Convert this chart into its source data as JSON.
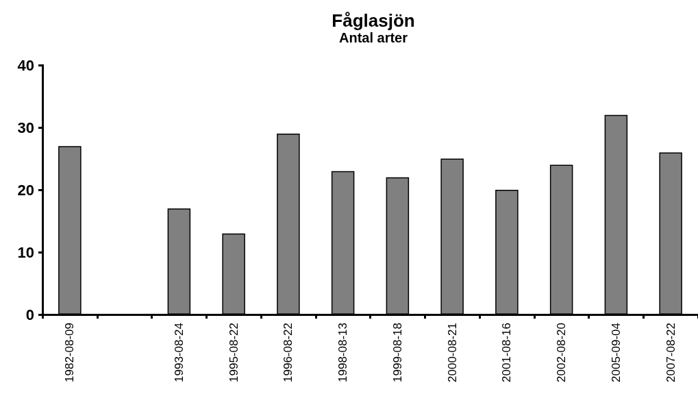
{
  "chart_data": {
    "type": "bar",
    "title": "Fåglasjön",
    "subtitle": "Antal arter",
    "categories": [
      "1982-08-09",
      null,
      "1993-08-24",
      "1995-08-22",
      "1996-08-22",
      "1998-08-13",
      "1999-08-18",
      "2000-08-21",
      "2001-08-16",
      "2002-08-20",
      "2005-09-04",
      "2007-08-22"
    ],
    "values": [
      27,
      null,
      17,
      13,
      29,
      23,
      22,
      25,
      20,
      24,
      32,
      26
    ],
    "color": "#808080",
    "ylim": [
      0,
      40
    ],
    "yticks": [
      0,
      10,
      20,
      30,
      40
    ],
    "grid": false
  }
}
